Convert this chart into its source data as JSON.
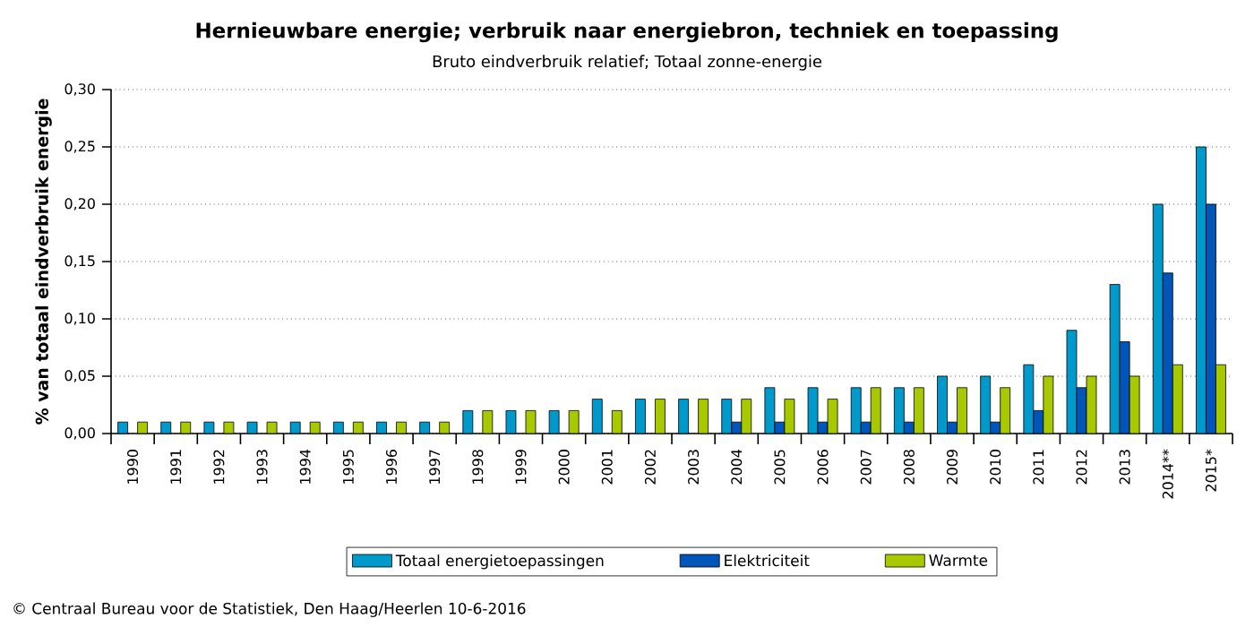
{
  "chart_data": {
    "type": "bar",
    "title": "Hernieuwbare energie; verbruik naar energiebron, techniek en toepassing",
    "subtitle": "Bruto eindverbruik relatief; Totaal zonne-energie",
    "ylabel": "% van totaal eindverbruik energie",
    "categories": [
      "1990",
      "1991",
      "1992",
      "1993",
      "1994",
      "1995",
      "1996",
      "1997",
      "1998",
      "1999",
      "2000",
      "2001",
      "2002",
      "2003",
      "2004",
      "2005",
      "2006",
      "2007",
      "2008",
      "2009",
      "2010",
      "2011",
      "2012",
      "2013",
      "2014**",
      "2015*"
    ],
    "series": [
      {
        "name": "Totaal energietoepassingen",
        "color": "#0099cc",
        "values": [
          0.01,
          0.01,
          0.01,
          0.01,
          0.01,
          0.01,
          0.01,
          0.01,
          0.02,
          0.02,
          0.02,
          0.03,
          0.03,
          0.03,
          0.03,
          0.04,
          0.04,
          0.04,
          0.04,
          0.05,
          0.05,
          0.06,
          0.09,
          0.13,
          0.2,
          0.25
        ]
      },
      {
        "name": "Elektriciteit",
        "color": "#0055b8",
        "values": [
          null,
          null,
          null,
          null,
          null,
          null,
          null,
          null,
          null,
          null,
          null,
          null,
          null,
          null,
          0.01,
          0.01,
          0.01,
          0.01,
          0.01,
          0.01,
          0.01,
          0.02,
          0.04,
          0.08,
          0.14,
          0.2
        ]
      },
      {
        "name": "Warmte",
        "color": "#a8c800",
        "values": [
          0.01,
          0.01,
          0.01,
          0.01,
          0.01,
          0.01,
          0.01,
          0.01,
          0.02,
          0.02,
          0.02,
          0.02,
          0.03,
          0.03,
          0.03,
          0.03,
          0.03,
          0.04,
          0.04,
          0.04,
          0.04,
          0.05,
          0.05,
          0.05,
          0.06,
          0.06
        ]
      }
    ],
    "ylim": [
      0,
      0.3
    ],
    "yticks": [
      {
        "value": 0,
        "label": "0,00"
      },
      {
        "value": 0.05,
        "label": "0,05"
      },
      {
        "value": 0.1,
        "label": "0,10"
      },
      {
        "value": 0.15,
        "label": "0,15"
      },
      {
        "value": 0.2,
        "label": "0,20"
      },
      {
        "value": 0.25,
        "label": "0,25"
      },
      {
        "value": 0.3,
        "label": "0,30"
      }
    ],
    "grid": "y",
    "legend": "bottom",
    "annotations": [
      "© Centraal Bureau voor de Statistiek, Den Haag/Heerlen 10-6-2016"
    ]
  }
}
